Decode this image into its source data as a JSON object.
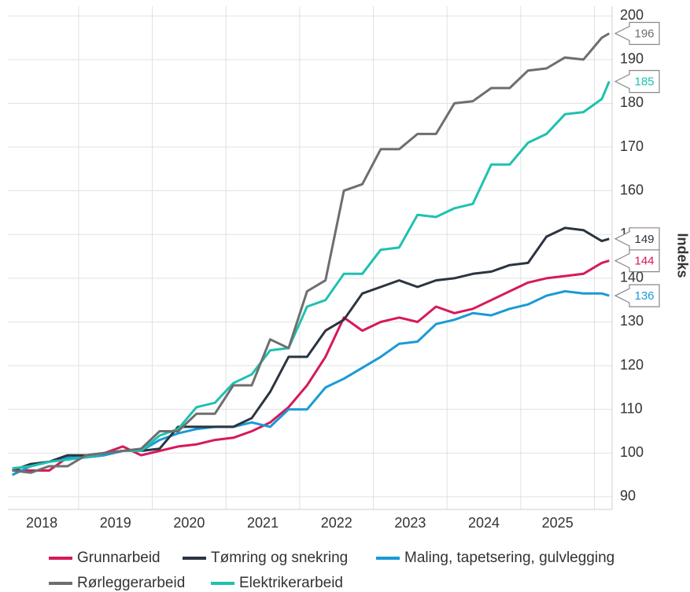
{
  "chart_data": {
    "type": "line",
    "y_label": "Indeks",
    "x": [
      2018.1,
      2018.35,
      2018.6,
      2018.85,
      2019.1,
      2019.35,
      2019.6,
      2019.85,
      2020.1,
      2020.35,
      2020.6,
      2020.85,
      2021.1,
      2021.35,
      2021.6,
      2021.85,
      2022.1,
      2022.35,
      2022.6,
      2022.85,
      2023.1,
      2023.35,
      2023.6,
      2023.85,
      2024.1,
      2024.35,
      2024.6,
      2024.85,
      2025.1,
      2025.35,
      2025.6,
      2025.85,
      2026.1,
      2026.2
    ],
    "series": [
      {
        "name": "Grunnarbeid",
        "color": "#d6195b",
        "values": [
          96,
          96,
          96,
          99,
          99.5,
          100,
          101.5,
          99.5,
          100.5,
          101.5,
          102,
          103,
          103.5,
          105,
          107,
          110.5,
          115.5,
          122,
          131,
          128,
          130,
          131,
          130,
          133.5,
          132,
          133,
          135,
          137,
          139,
          140,
          140.5,
          141,
          143.5,
          144
        ]
      },
      {
        "name": "Tømring og snekring",
        "color": "#2b3440",
        "values": [
          96,
          97.5,
          98,
          99.5,
          99.5,
          100,
          100.5,
          100.5,
          101,
          106,
          106,
          106,
          106,
          108,
          114,
          122,
          122,
          128,
          130.5,
          136.5,
          138,
          139.5,
          138,
          139.5,
          140,
          141,
          141.5,
          143,
          143.5,
          149.5,
          151.5,
          151,
          148.5,
          149
        ]
      },
      {
        "name": "Maling, tapetsering, gulvlegging",
        "color": "#1a9ad6",
        "values": [
          95,
          97,
          98,
          99,
          99,
          99.5,
          100.5,
          100.5,
          103,
          104.5,
          105.5,
          106,
          106,
          107,
          106,
          110,
          110,
          115,
          117,
          119.5,
          122,
          125,
          125.5,
          129.5,
          130.5,
          132,
          131.5,
          133,
          134,
          136,
          137,
          136.5,
          136.5,
          136
        ]
      },
      {
        "name": "Rørleggerarbeid",
        "color": "#6e6e6e",
        "values": [
          96,
          95.5,
          97,
          97,
          99.5,
          100,
          100.5,
          101,
          105,
          105,
          109,
          109,
          115.5,
          115.5,
          126,
          124,
          137,
          139.5,
          160,
          161.5,
          169.5,
          169.5,
          173,
          173,
          180,
          180.5,
          183.5,
          183.5,
          187.5,
          188,
          190.5,
          190,
          195,
          196
        ]
      },
      {
        "name": "Elektrikerarbeid",
        "color": "#1ec1b0",
        "values": [
          96.5,
          97,
          98,
          98.5,
          99,
          100,
          100.5,
          100.5,
          104,
          105.5,
          110.5,
          111.5,
          116,
          118,
          123.5,
          124,
          133.5,
          135,
          141,
          141,
          146.5,
          147,
          154.5,
          154,
          156,
          157,
          166,
          166,
          171,
          173,
          177.5,
          178,
          181,
          185
        ]
      }
    ],
    "xlim": [
      2018.04,
      2026.24
    ],
    "xticks": [
      {
        "value": 2018.5,
        "label": "2018"
      },
      {
        "value": 2019.5,
        "label": "2019"
      },
      {
        "value": 2020.5,
        "label": "2020"
      },
      {
        "value": 2021.5,
        "label": "2021"
      },
      {
        "value": 2022.5,
        "label": "2022"
      },
      {
        "value": 2023.5,
        "label": "2023"
      },
      {
        "value": 2024.5,
        "label": "2024"
      },
      {
        "value": 2025.5,
        "label": "2025"
      }
    ],
    "xgrid": [
      2019,
      2020,
      2021,
      2022,
      2023,
      2024,
      2025,
      2026
    ],
    "ylim": [
      87.1,
      202.2
    ],
    "yticks": [
      90,
      100,
      110,
      120,
      130,
      140,
      150,
      160,
      170,
      180,
      190,
      200
    ],
    "grid": true,
    "legend": "bottom"
  }
}
